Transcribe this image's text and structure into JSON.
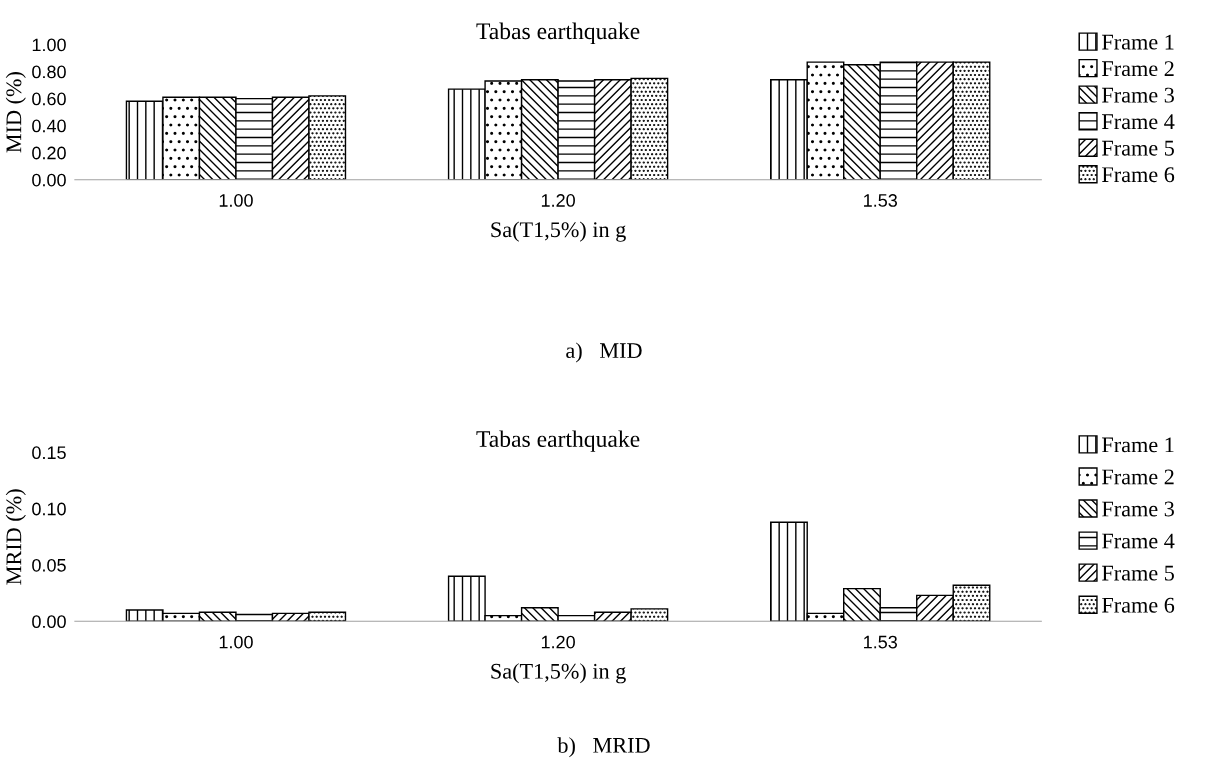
{
  "chart_data": [
    {
      "type": "bar",
      "title": "Tabas earthquake",
      "xlabel": "Sa(T1,5%) in g",
      "ylabel": "MID (%)",
      "categories": [
        "1.00",
        "1.20",
        "1.53"
      ],
      "series": [
        {
          "name": "Frame 1",
          "color": "#000000",
          "values": [
            0.58,
            0.67,
            0.74
          ]
        },
        {
          "name": "Frame 2",
          "color": "#000000",
          "values": [
            0.61,
            0.73,
            0.87
          ]
        },
        {
          "name": "Frame 3",
          "color": "#000000",
          "values": [
            0.61,
            0.74,
            0.85
          ]
        },
        {
          "name": "Frame 4",
          "color": "#000000",
          "values": [
            0.6,
            0.73,
            0.87
          ]
        },
        {
          "name": "Frame 5",
          "color": "#000000",
          "values": [
            0.61,
            0.74,
            0.87
          ]
        },
        {
          "name": "Frame 6",
          "color": "#000000",
          "values": [
            0.62,
            0.75,
            0.87
          ]
        }
      ],
      "ylim": [
        0,
        1
      ],
      "yticks": [
        {
          "value": 0,
          "label": "0.00"
        },
        {
          "value": 0.2,
          "label": "0.20"
        },
        {
          "value": 0.4,
          "label": "0.40"
        },
        {
          "value": 0.6,
          "label": "0.60"
        },
        {
          "value": 0.8,
          "label": "0.80"
        },
        {
          "value": 1,
          "label": "1.00"
        }
      ],
      "grid": false,
      "legend": "right",
      "annotations": [
        "a)   MID"
      ]
    },
    {
      "type": "bar",
      "title": "Tabas earthquake",
      "xlabel": "Sa(T1,5%) in g",
      "ylabel": "MRID (%)",
      "categories": [
        "1.00",
        "1.20",
        "1.53"
      ],
      "series": [
        {
          "name": "Frame 1",
          "color": "#000000",
          "values": [
            0.01,
            0.04,
            0.088
          ]
        },
        {
          "name": "Frame 2",
          "color": "#000000",
          "values": [
            0.007,
            0.005,
            0.007
          ]
        },
        {
          "name": "Frame 3",
          "color": "#000000",
          "values": [
            0.008,
            0.012,
            0.029
          ]
        },
        {
          "name": "Frame 4",
          "color": "#000000",
          "values": [
            0.006,
            0.005,
            0.012
          ]
        },
        {
          "name": "Frame 5",
          "color": "#000000",
          "values": [
            0.007,
            0.008,
            0.023
          ]
        },
        {
          "name": "Frame 6",
          "color": "#000000",
          "values": [
            0.008,
            0.011,
            0.032
          ]
        }
      ],
      "ylim": [
        0,
        0.15
      ],
      "yticks": [
        {
          "value": 0,
          "label": "0.00"
        },
        {
          "value": 0.05,
          "label": "0.05"
        },
        {
          "value": 0.1,
          "label": "0.10"
        },
        {
          "value": 0.15,
          "label": "0.15"
        }
      ],
      "grid": false,
      "legend": "right",
      "annotations": [
        "b)   MRID"
      ]
    }
  ]
}
